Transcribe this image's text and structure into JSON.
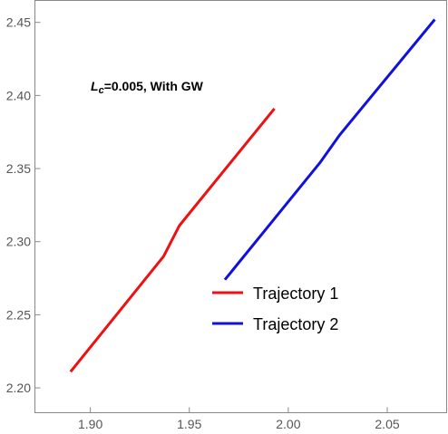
{
  "chart_data": {
    "type": "line",
    "title": "",
    "xlabel": "",
    "ylabel": "",
    "xlim": [
      1.872,
      2.08
    ],
    "ylim": [
      2.183,
      2.465
    ],
    "x_ticks": [
      1.9,
      1.95,
      2.0,
      2.05
    ],
    "x_tick_labels": [
      "1.90",
      "1.95",
      "2.00",
      "2.05"
    ],
    "y_ticks": [
      2.2,
      2.25,
      2.3,
      2.35,
      2.4,
      2.45
    ],
    "y_tick_labels": [
      "2.20",
      "2.25",
      "2.30",
      "2.35",
      "2.40",
      "2.45"
    ],
    "grid": false,
    "legend_position": "lower-right",
    "annotation": {
      "prefix": "L",
      "subscript": "c",
      "suffix": "=0.005, With GW"
    },
    "series": [
      {
        "name": "Trajectory 1",
        "color": "#ee1111",
        "x": [
          1.89,
          1.937,
          1.945,
          1.993
        ],
        "y": [
          2.211,
          2.29,
          2.311,
          2.391
        ]
      },
      {
        "name": "Trajectory 2",
        "color": "#1111dd",
        "x": [
          1.968,
          2.016,
          2.026,
          2.074
        ],
        "y": [
          2.274,
          2.354,
          2.373,
          2.452
        ]
      }
    ]
  }
}
